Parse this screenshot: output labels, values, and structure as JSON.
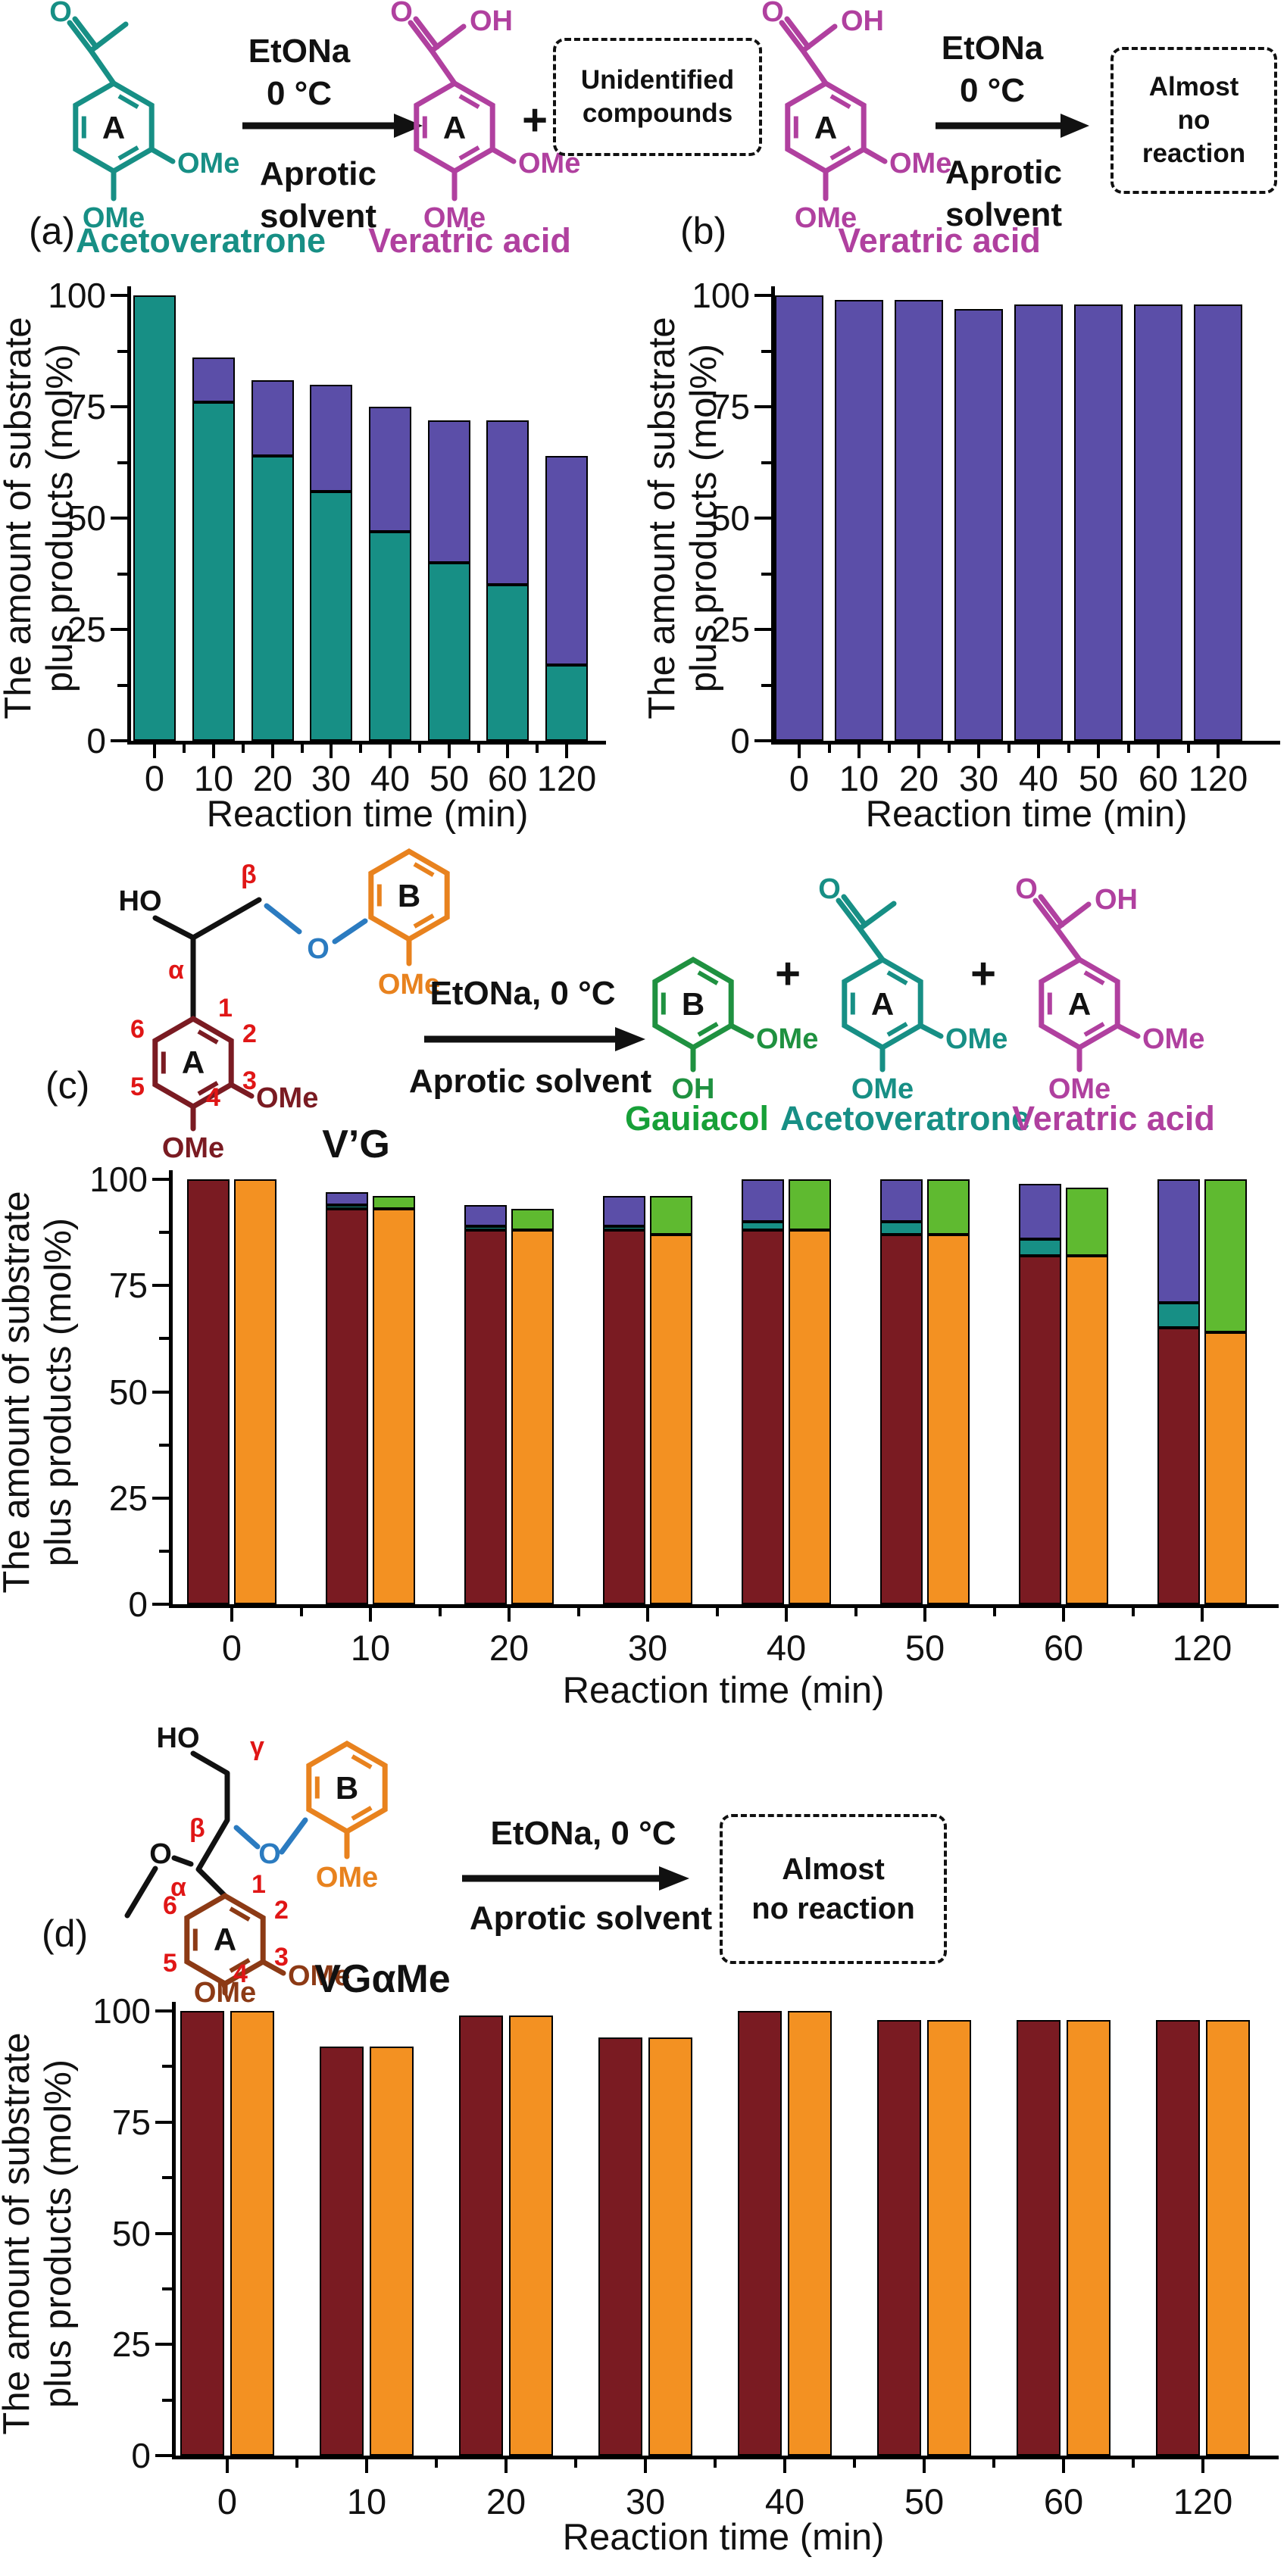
{
  "panels": {
    "a": {
      "label": "(a)",
      "substrate_name": "Acetoveratrone",
      "product_name": "Veratric acid",
      "cond": [
        "EtONa",
        "0 °C",
        "Aprotic",
        "solvent"
      ],
      "plus": "+",
      "box_lines": [
        "Unidentified",
        "compounds"
      ]
    },
    "b": {
      "label": "(b)",
      "substrate_name": "Veratric acid",
      "cond": [
        "EtONa",
        "0 °C",
        "Aprotic",
        "solvent"
      ],
      "box_lines": [
        "Almost",
        "no",
        "reaction"
      ]
    },
    "c": {
      "label": "(c)",
      "substrate_name": "V’G",
      "cond1": "EtONa, 0 °C",
      "cond2": "Aprotic solvent",
      "plus": "+",
      "product_names": [
        "Gauiacol",
        "Acetoveratrone",
        "Veratric acid"
      ]
    },
    "d": {
      "label": "(d)",
      "substrate_name": "VGαMe",
      "cond1": "EtONa, 0 °C",
      "cond2": "Aprotic solvent",
      "box_lines": [
        "Almost",
        "no reaction"
      ]
    }
  },
  "struct": {
    "A": "A",
    "B": "B",
    "OMe": "OMe",
    "OH": "OH",
    "HO": "HO",
    "O": "O",
    "alpha": "α",
    "beta": "β",
    "gamma": "γ",
    "n1": "1",
    "n2": "2",
    "n3": "3",
    "n4": "4",
    "n5": "5",
    "n6": "6"
  },
  "axis": {
    "ylabel1": "The amount of substrate",
    "ylabel2": "plus products (mol%)",
    "xlabel": "Reaction time (min)",
    "yticks": [
      "0",
      "25",
      "50",
      "75",
      "100"
    ],
    "categories": [
      "0",
      "10",
      "20",
      "30",
      "40",
      "50",
      "60",
      "120"
    ]
  },
  "colors": {
    "teal": "#178F85",
    "purple": "#5B4EA8",
    "maroon": "#7A1B22",
    "orange": "#F39122",
    "green": "#5FBA30",
    "magenta": "#B0409F",
    "struct_orange": "#E8821E",
    "struct_green": "#1F9140",
    "brown": "#8C3A15",
    "blue": "#2B7BC0",
    "red": "#E01616"
  },
  "chart_data": [
    {
      "panel": "a",
      "type": "stacked-bar",
      "title": "Acetoveratrone + EtONa, 0 °C, aprotic solvent",
      "xlabel": "Reaction time (min)",
      "ylabel": "The amount of substrate plus products (mol%)",
      "ylim": [
        0,
        100
      ],
      "yticks": [
        0,
        25,
        50,
        75,
        100
      ],
      "grid": false,
      "legend": "none",
      "categories": [
        "0",
        "10",
        "20",
        "30",
        "40",
        "50",
        "60",
        "120"
      ],
      "bars_per_group": 1,
      "series": [
        {
          "name": "Acetoveratrone",
          "bar": 0,
          "color": "#178F85",
          "values": [
            100,
            76,
            64,
            56,
            47,
            40,
            35,
            17
          ]
        },
        {
          "name": "Veratric acid",
          "bar": 0,
          "color": "#5B4EA8",
          "values": [
            0,
            10,
            17,
            24,
            28,
            32,
            37,
            47
          ]
        }
      ]
    },
    {
      "panel": "b",
      "type": "bar",
      "title": "Veratric acid + EtONa, 0 °C, aprotic solvent (almost no reaction)",
      "xlabel": "Reaction time (min)",
      "ylabel": "The amount of substrate plus products (mol%)",
      "ylim": [
        0,
        100
      ],
      "yticks": [
        0,
        25,
        50,
        75,
        100
      ],
      "grid": false,
      "legend": "none",
      "categories": [
        "0",
        "10",
        "20",
        "30",
        "40",
        "50",
        "60",
        "120"
      ],
      "bars_per_group": 1,
      "series": [
        {
          "name": "Veratric acid",
          "bar": 0,
          "color": "#5B4EA8",
          "values": [
            100,
            99,
            99,
            97,
            98,
            98,
            98,
            98
          ]
        }
      ]
    },
    {
      "panel": "c",
      "type": "grouped-stacked-bar",
      "title": "V’G + EtONa, 0 °C, aprotic solvent → Gauiacol + Acetoveratrone + Veratric acid",
      "xlabel": "Reaction time (min)",
      "ylabel": "The amount of substrate plus products (mol%)",
      "ylim": [
        0,
        100
      ],
      "yticks": [
        0,
        25,
        50,
        75,
        100
      ],
      "grid": false,
      "legend": "none",
      "categories": [
        "0",
        "10",
        "20",
        "30",
        "40",
        "50",
        "60",
        "120"
      ],
      "bars_per_group": 2,
      "series": [
        {
          "name": "V’G",
          "bar": 0,
          "color": "#7A1B22",
          "values": [
            100,
            93,
            88,
            88,
            88,
            87,
            82,
            65
          ]
        },
        {
          "name": "Acetoveratrone",
          "bar": 0,
          "color": "#178F85",
          "values": [
            0,
            1,
            1,
            1,
            2,
            3,
            4,
            6
          ]
        },
        {
          "name": "Veratric acid",
          "bar": 0,
          "color": "#5B4EA8",
          "values": [
            0,
            3,
            5,
            7,
            10,
            10,
            13,
            29
          ]
        },
        {
          "name": "V’G",
          "bar": 1,
          "color": "#F39122",
          "values": [
            100,
            93,
            88,
            87,
            88,
            87,
            82,
            64
          ]
        },
        {
          "name": "Gauiacol",
          "bar": 1,
          "color": "#5FBA30",
          "values": [
            0,
            3,
            5,
            9,
            12,
            13,
            16,
            36
          ]
        }
      ]
    },
    {
      "panel": "d",
      "type": "grouped-bar",
      "title": "VGαMe + EtONa, 0 °C, aprotic solvent (almost no reaction)",
      "xlabel": "Reaction time (min)",
      "ylabel": "The amount of substrate plus products (mol%)",
      "ylim": [
        0,
        100
      ],
      "yticks": [
        0,
        25,
        50,
        75,
        100
      ],
      "grid": false,
      "legend": "none",
      "categories": [
        "0",
        "10",
        "20",
        "30",
        "40",
        "50",
        "60",
        "120"
      ],
      "bars_per_group": 2,
      "series": [
        {
          "name": "VGαMe",
          "bar": 0,
          "color": "#7A1B22",
          "values": [
            100,
            92,
            99,
            94,
            100,
            98,
            98,
            98
          ]
        },
        {
          "name": "VGαMe",
          "bar": 1,
          "color": "#F39122",
          "values": [
            100,
            92,
            99,
            94,
            100,
            98,
            98,
            98
          ]
        }
      ]
    }
  ]
}
